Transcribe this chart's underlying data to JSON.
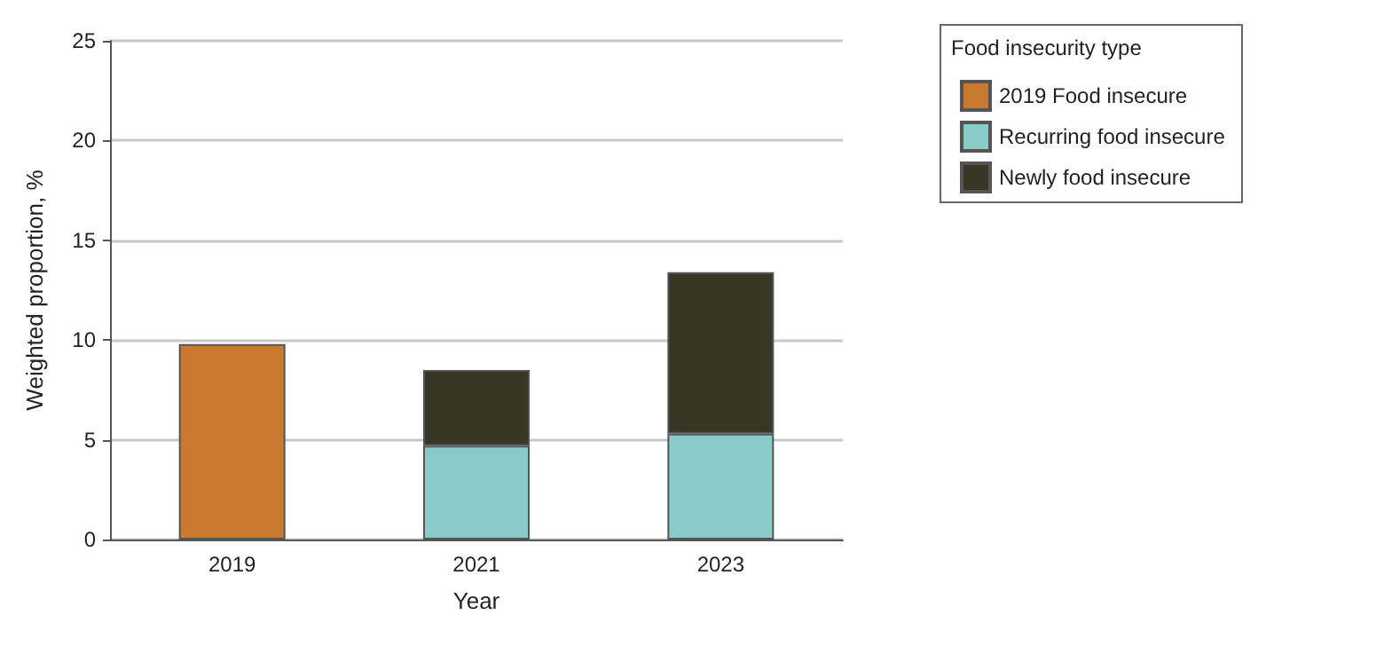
{
  "chart_data": {
    "type": "bar",
    "stacked": true,
    "xlabel": "Year",
    "ylabel": "Weighted proportion, %",
    "legend_title": "Food insecurity type",
    "categories": [
      "2019",
      "2021",
      "2023"
    ],
    "series": [
      {
        "name": "2019 Food insecure",
        "color": "#c97a2e",
        "values": [
          9.8,
          null,
          null
        ]
      },
      {
        "name": "Recurring food insecure",
        "color": "#88cbc9",
        "values": [
          null,
          4.7,
          5.3
        ]
      },
      {
        "name": "Newly food insecure",
        "color": "#363725",
        "values": [
          null,
          3.8,
          8.1
        ]
      }
    ],
    "ylim": [
      0,
      25
    ],
    "yticks": [
      0,
      5,
      10,
      15,
      20,
      25
    ],
    "grid": "y",
    "legend": "top right"
  }
}
